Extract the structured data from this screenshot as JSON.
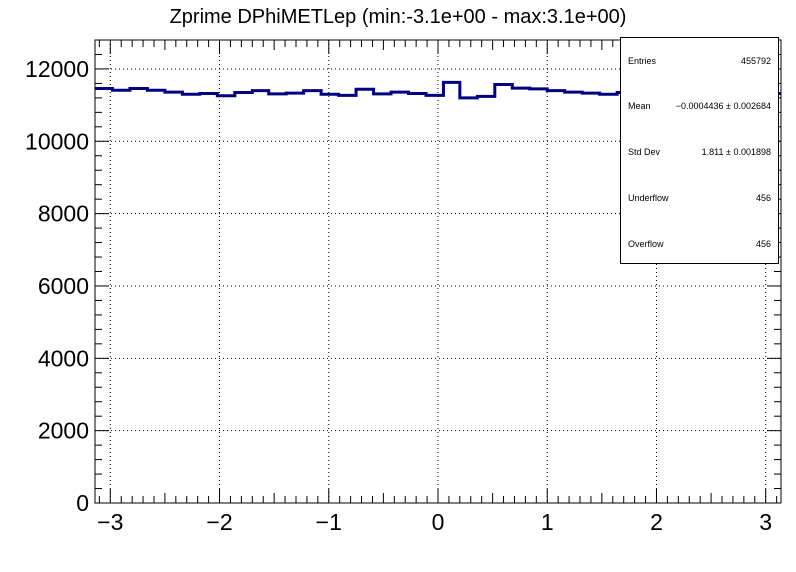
{
  "chart_data": {
    "type": "histogram",
    "title": "Zprime DPhiMETLep (min:-3.1e+00 - max:3.1e+00)",
    "xlabel": "",
    "ylabel": "",
    "xlim": [
      -3.14,
      3.14
    ],
    "ylim": [
      0,
      12800
    ],
    "x_ticks": [
      -3,
      -2,
      -1,
      0,
      1,
      2,
      3
    ],
    "x_tick_labels": [
      "−3",
      "−2",
      "−1",
      "0",
      "1",
      "2",
      "3"
    ],
    "y_ticks": [
      0,
      2000,
      4000,
      6000,
      8000,
      10000,
      12000
    ],
    "y_tick_labels": [
      "0",
      "2000",
      "4000",
      "6000",
      "8000",
      "10000",
      "12000"
    ],
    "grid": true,
    "line_color": "#000080",
    "bin_edges": [
      -3.14,
      -2.98,
      -2.82,
      -2.66,
      -2.5,
      -2.34,
      -2.18,
      -2.02,
      -1.86,
      -1.7,
      -1.55,
      -1.39,
      -1.23,
      -1.07,
      -0.91,
      -0.75,
      -0.59,
      -0.43,
      -0.27,
      -0.11,
      0.05,
      0.2,
      0.36,
      0.52,
      0.68,
      0.84,
      1.0,
      1.16,
      1.32,
      1.48,
      1.64,
      1.8,
      1.96,
      2.12,
      2.28,
      2.44,
      2.6,
      2.76,
      2.92,
      3.14
    ],
    "values": [
      11460,
      11410,
      11460,
      11410,
      11360,
      11300,
      11320,
      11260,
      11350,
      11400,
      11310,
      11330,
      11400,
      11300,
      11270,
      11440,
      11310,
      11360,
      11320,
      11270,
      11630,
      11200,
      11240,
      11570,
      11470,
      11450,
      11400,
      11360,
      11330,
      11300,
      11350,
      11370,
      11310,
      11340,
      11360,
      11330,
      11380,
      11350,
      11320
    ]
  },
  "stats": {
    "rows": [
      {
        "label": "Entries",
        "value": "455792"
      },
      {
        "label": "Mean",
        "value": "−0.0004436 ± 0.002684"
      },
      {
        "label": "Std Dev",
        "value": "1.811 ± 0.001898"
      },
      {
        "label": "Underflow",
        "value": "456"
      },
      {
        "label": "Overflow",
        "value": "456"
      }
    ]
  }
}
